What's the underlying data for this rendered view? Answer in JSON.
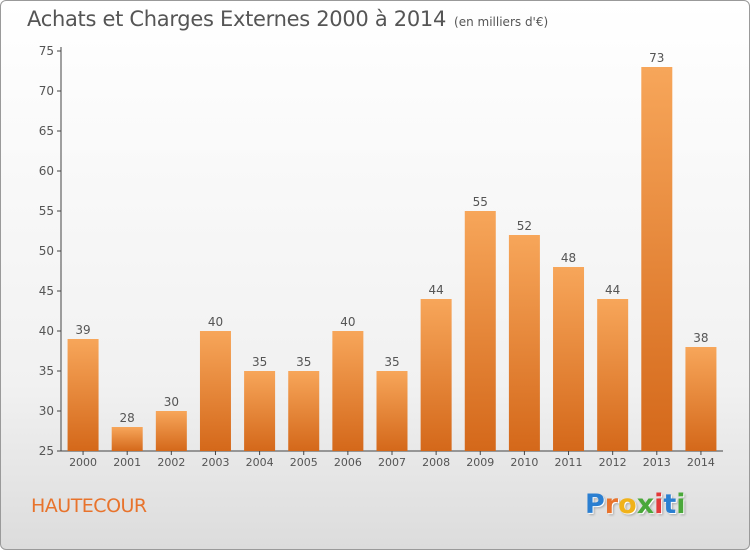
{
  "title": "Achats et Charges Externes 2000 à 2014",
  "unit": "(en milliers d'€)",
  "commune": "HAUTECOUR",
  "logo": {
    "letters": [
      "P",
      "r",
      "o",
      "x",
      "i",
      "t",
      "i"
    ],
    "colors": [
      "#2b7fd1",
      "#e8732c",
      "#f0b21a",
      "#4aa83a",
      "#e23a3a",
      "#2b7fd1",
      "#4aa83a"
    ]
  },
  "colors": {
    "bar_top": "#f7a65a",
    "bar_bottom": "#d4681a",
    "text": "#555555",
    "axis": "#444444"
  },
  "chart_data": {
    "type": "bar",
    "title": "Achats et Charges Externes 2000 à 2014",
    "xlabel": "",
    "ylabel": "",
    "categories": [
      "2000",
      "2001",
      "2002",
      "2003",
      "2004",
      "2005",
      "2006",
      "2007",
      "2008",
      "2009",
      "2010",
      "2011",
      "2012",
      "2013",
      "2014"
    ],
    "values": [
      39,
      28,
      30,
      40,
      35,
      35,
      40,
      35,
      44,
      55,
      52,
      48,
      44,
      73,
      38
    ],
    "ylim": [
      25,
      75
    ],
    "yticks": [
      25,
      30,
      35,
      40,
      45,
      50,
      55,
      60,
      65,
      70,
      75
    ],
    "grid": false
  }
}
